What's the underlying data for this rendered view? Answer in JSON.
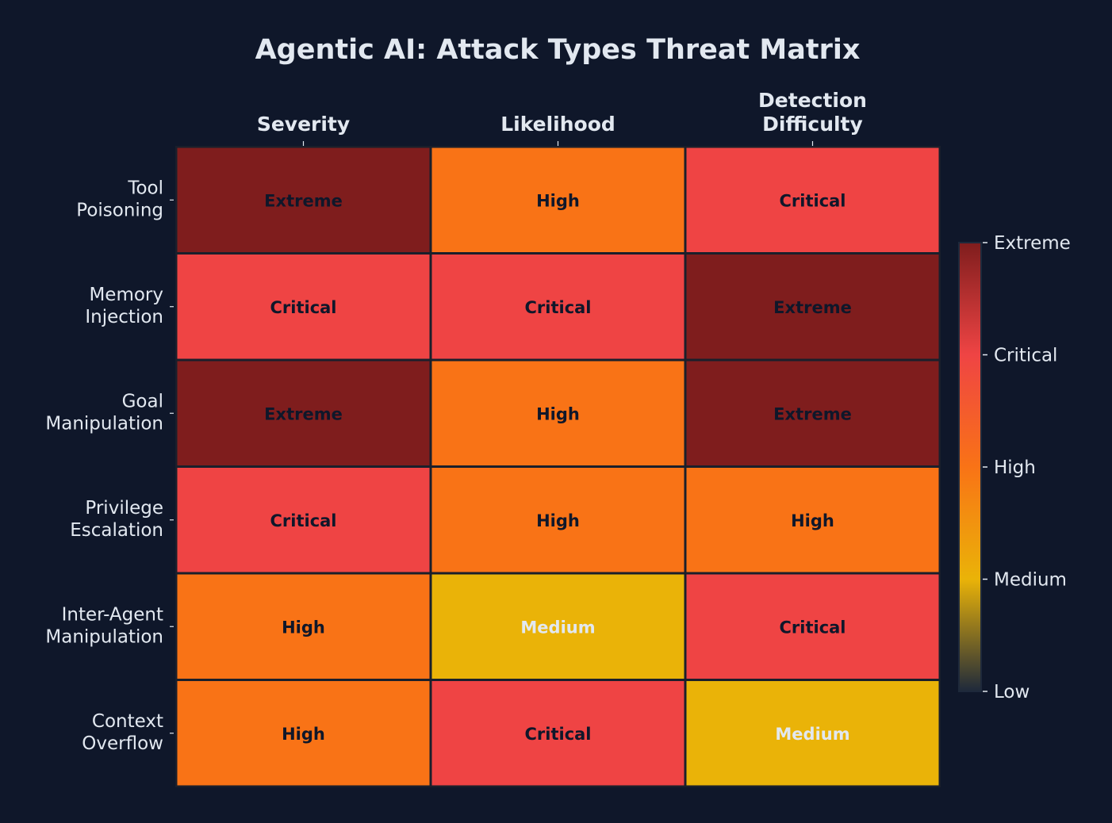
{
  "chart_data": {
    "type": "heatmap",
    "title": "Agentic AI: Attack Types Threat Matrix",
    "columns": [
      [
        "Severity"
      ],
      [
        "Likelihood"
      ],
      [
        "Detection",
        "Difficulty"
      ]
    ],
    "rows": [
      [
        "Tool",
        "Poisoning"
      ],
      [
        "Memory",
        "Injection"
      ],
      [
        "Goal",
        "Manipulation"
      ],
      [
        "Privilege",
        "Escalation"
      ],
      [
        "Inter-Agent",
        "Manipulation"
      ],
      [
        "Context",
        "Overflow"
      ]
    ],
    "levels": [
      "Low",
      "Medium",
      "High",
      "Critical",
      "Extreme"
    ],
    "level_colors": [
      "#1e293b",
      "#eab308",
      "#f97316",
      "#ef4444",
      "#7f1d1d"
    ],
    "values": [
      [
        "Extreme",
        "High",
        "Critical"
      ],
      [
        "Critical",
        "Critical",
        "Extreme"
      ],
      [
        "Extreme",
        "High",
        "Extreme"
      ],
      [
        "Critical",
        "High",
        "High"
      ],
      [
        "High",
        "Medium",
        "Critical"
      ],
      [
        "High",
        "Critical",
        "Medium"
      ]
    ],
    "colorbar": {
      "ticks": [
        "Low",
        "Medium",
        "High",
        "Critical",
        "Extreme"
      ],
      "range": [
        0,
        4
      ]
    },
    "colors": {
      "background": "#0f172a",
      "text": "#e2e8f0",
      "cell_text_dark": "#0f172a"
    }
  }
}
